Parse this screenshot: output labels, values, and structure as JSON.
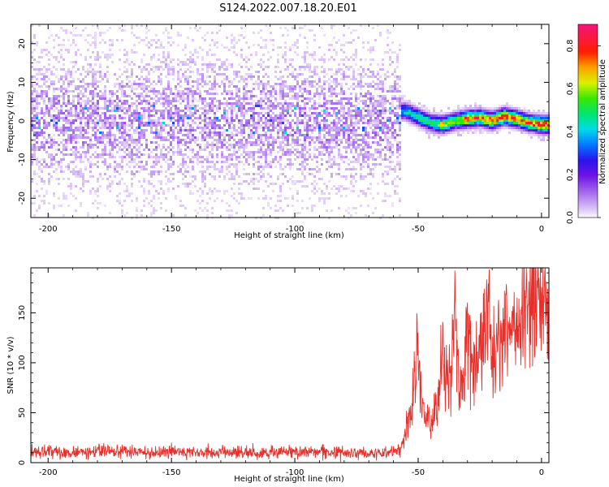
{
  "figure_title": "S124.2022.007.18.20.E01",
  "colors": {
    "snr_line": "#e8302a",
    "axes": "#000000",
    "background": "#ffffff"
  },
  "chart_data": [
    {
      "type": "heatmap",
      "title": "",
      "xlabel": "Height of straight line (km)",
      "ylabel": "Frequency (Hz)",
      "xlim": [
        -207,
        3
      ],
      "ylim": [
        -25,
        25
      ],
      "x_ticks": [
        -200,
        -150,
        -100,
        -50,
        0
      ],
      "y_ticks": [
        -20,
        -10,
        0,
        10,
        20
      ],
      "colorbar": {
        "label": "Normalized spectral amplitude",
        "range": [
          0,
          0.9
        ],
        "ticks": [
          0.0,
          0.2,
          0.4,
          0.6,
          0.8
        ],
        "colormap": "rainbow (white-purple-blue-cyan-green-yellow-red-magenta)"
      },
      "description_regions": [
        {
          "x_range": [
            -207,
            -57
          ],
          "freq_center": 0,
          "freq_spread": 10,
          "amplitude": 0.25,
          "note": "broad diffuse low amplitude"
        },
        {
          "x_range": [
            -57,
            3
          ],
          "freq_center": 0,
          "freq_spread": 2,
          "amplitude": 0.9,
          "note": "narrow strong band"
        }
      ],
      "peak_track": [
        {
          "x": -55,
          "y": 2.5,
          "v": 0.45
        },
        {
          "x": -50,
          "y": 1.0,
          "v": 0.55
        },
        {
          "x": -45,
          "y": -0.5,
          "v": 0.5
        },
        {
          "x": -40,
          "y": -1.0,
          "v": 0.7
        },
        {
          "x": -35,
          "y": 0.0,
          "v": 0.6
        },
        {
          "x": -30,
          "y": 0.5,
          "v": 0.8
        },
        {
          "x": -25,
          "y": 0.8,
          "v": 0.75
        },
        {
          "x": -20,
          "y": 0.0,
          "v": 0.8
        },
        {
          "x": -15,
          "y": 1.2,
          "v": 0.85
        },
        {
          "x": -10,
          "y": 0.5,
          "v": 0.8
        },
        {
          "x": -5,
          "y": -0.5,
          "v": 0.75
        },
        {
          "x": 0,
          "y": -1.0,
          "v": 0.9
        }
      ]
    },
    {
      "type": "line",
      "title": "",
      "xlabel": "Height of straight line (km)",
      "ylabel": "SNR (10 * v/v)",
      "xlim": [
        -207,
        3
      ],
      "ylim": [
        0,
        195
      ],
      "x_ticks": [
        -200,
        -150,
        -100,
        -50,
        0
      ],
      "y_ticks": [
        0,
        50,
        100,
        150
      ],
      "series": [
        {
          "color": "#e8302a",
          "points": [
            [
              -207,
              10
            ],
            [
              -200,
              11
            ],
            [
              -190,
              10
            ],
            [
              -180,
              11
            ],
            [
              -170,
              12
            ],
            [
              -160,
              10
            ],
            [
              -150,
              11
            ],
            [
              -140,
              10
            ],
            [
              -130,
              11
            ],
            [
              -120,
              10
            ],
            [
              -110,
              10
            ],
            [
              -100,
              11
            ],
            [
              -90,
              10
            ],
            [
              -80,
              10
            ],
            [
              -70,
              9
            ],
            [
              -60,
              10
            ],
            [
              -57,
              12
            ],
            [
              -55,
              30
            ],
            [
              -53,
              50
            ],
            [
              -51,
              90
            ],
            [
              -50,
              120
            ],
            [
              -48,
              50
            ],
            [
              -45,
              40
            ],
            [
              -42,
              60
            ],
            [
              -40,
              110
            ],
            [
              -38,
              80
            ],
            [
              -35,
              140
            ],
            [
              -33,
              60
            ],
            [
              -31,
              100
            ],
            [
              -30,
              130
            ],
            [
              -28,
              100
            ],
            [
              -25,
              120
            ],
            [
              -22,
              150
            ],
            [
              -20,
              110
            ],
            [
              -18,
              125
            ],
            [
              -15,
              130
            ],
            [
              -12,
              135
            ],
            [
              -10,
              130
            ],
            [
              -8,
              140
            ],
            [
              -5,
              145
            ],
            [
              -3,
              150
            ],
            [
              -1,
              155
            ],
            [
              0,
              160
            ],
            [
              2,
              165
            ]
          ]
        }
      ]
    }
  ]
}
